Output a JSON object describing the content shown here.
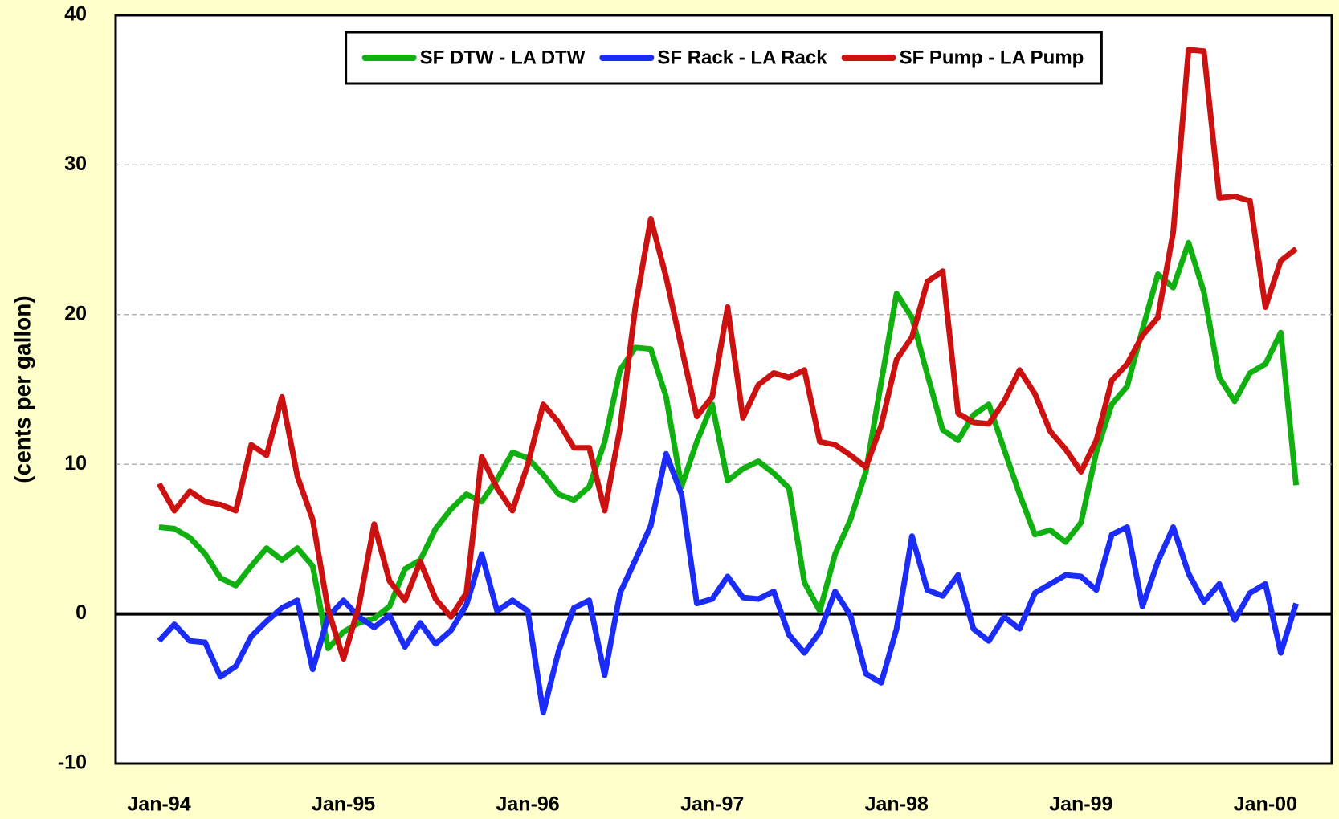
{
  "chart_data": {
    "type": "line",
    "y_label": "(cents per gallon)",
    "categories": [
      "Jan-94",
      null,
      null,
      null,
      null,
      null,
      null,
      null,
      null,
      null,
      null,
      null,
      "Jan-95",
      null,
      null,
      null,
      null,
      null,
      null,
      null,
      null,
      null,
      null,
      null,
      "Jan-96",
      null,
      null,
      null,
      null,
      null,
      null,
      null,
      null,
      null,
      null,
      null,
      "Jan-97",
      null,
      null,
      null,
      null,
      null,
      null,
      null,
      null,
      null,
      null,
      null,
      "Jan-98",
      null,
      null,
      null,
      null,
      null,
      null,
      null,
      null,
      null,
      null,
      null,
      "Jan-99",
      null,
      null,
      null,
      null,
      null,
      null,
      null,
      null,
      null,
      null,
      null,
      "Jan-00",
      null,
      null
    ],
    "series": [
      {
        "name": "SF DTW - LA DTW",
        "color": "#11b011",
        "values": [
          5.8,
          5.7,
          5.1,
          4.0,
          2.4,
          1.9,
          3.2,
          4.4,
          3.6,
          4.4,
          3.2,
          -2.3,
          -1.2,
          -0.6,
          -0.3,
          0.5,
          3.0,
          3.6,
          5.7,
          7.0,
          8.0,
          7.5,
          9.0,
          10.8,
          10.4,
          9.3,
          8.0,
          7.6,
          8.5,
          11.5,
          16.3,
          17.8,
          17.7,
          14.5,
          8.5,
          11.5,
          14.0,
          8.9,
          9.7,
          10.2,
          9.4,
          8.4,
          2.1,
          0.2,
          4.0,
          6.3,
          9.5,
          15.5,
          21.4,
          19.8,
          16.0,
          12.3,
          11.6,
          13.3,
          14.0,
          11.0,
          8.0,
          5.3,
          5.6,
          4.8,
          6.1,
          10.8,
          14.0,
          15.2,
          19.0,
          22.7,
          21.8,
          24.8,
          21.5,
          15.8,
          14.2,
          16.1,
          16.7,
          18.8,
          8.6
        ]
      },
      {
        "name": "SF Rack - LA Rack",
        "color": "#1a2cf5",
        "values": [
          -1.8,
          -0.7,
          -1.8,
          -1.9,
          -4.2,
          -3.5,
          -1.5,
          -0.5,
          0.4,
          0.9,
          -3.7,
          -0.2,
          0.9,
          -0.2,
          -0.9,
          -0.1,
          -2.2,
          -0.6,
          -2.0,
          -1.1,
          0.6,
          4.0,
          0.2,
          0.9,
          0.2,
          -6.6,
          -2.5,
          0.4,
          0.9,
          -4.1,
          1.4,
          3.6,
          5.9,
          10.7,
          8.0,
          0.7,
          1.0,
          2.5,
          1.1,
          1.0,
          1.5,
          -1.4,
          -2.6,
          -1.2,
          1.5,
          -0.1,
          -4.0,
          -4.6,
          -1.0,
          5.2,
          1.6,
          1.2,
          2.6,
          -1.0,
          -1.8,
          -0.2,
          -1.0,
          1.4,
          2.0,
          2.6,
          2.5,
          1.6,
          5.3,
          5.8,
          0.5,
          3.5,
          5.8,
          2.7,
          0.8,
          2.0,
          -0.4,
          1.4,
          2.0,
          -2.6,
          0.7
        ]
      },
      {
        "name": "SF Pump - LA Pump",
        "color": "#cc1111",
        "values": [
          8.7,
          6.9,
          8.2,
          7.5,
          7.3,
          6.9,
          11.3,
          10.6,
          14.5,
          9.2,
          6.3,
          0.3,
          -3.0,
          0.5,
          6.0,
          2.2,
          0.9,
          3.5,
          1.0,
          -0.2,
          1.4,
          10.5,
          8.4,
          6.9,
          10.0,
          14.0,
          12.8,
          11.1,
          11.1,
          6.9,
          12.4,
          20.5,
          26.4,
          22.5,
          17.8,
          13.2,
          14.5,
          20.5,
          13.1,
          15.3,
          16.1,
          15.8,
          16.3,
          11.5,
          11.3,
          10.6,
          9.8,
          12.6,
          17.0,
          18.5,
          22.2,
          22.9,
          13.4,
          12.8,
          12.7,
          14.2,
          16.3,
          14.7,
          12.2,
          11.0,
          9.5,
          11.6,
          15.6,
          16.7,
          18.6,
          19.8,
          25.5,
          37.7,
          37.6,
          27.8,
          27.9,
          27.6,
          20.5,
          23.6,
          24.4
        ]
      }
    ],
    "ylim": [
      -10,
      40
    ],
    "yticks": [
      -10,
      0,
      10,
      20,
      30,
      40
    ],
    "grid": true,
    "legend": "top"
  }
}
